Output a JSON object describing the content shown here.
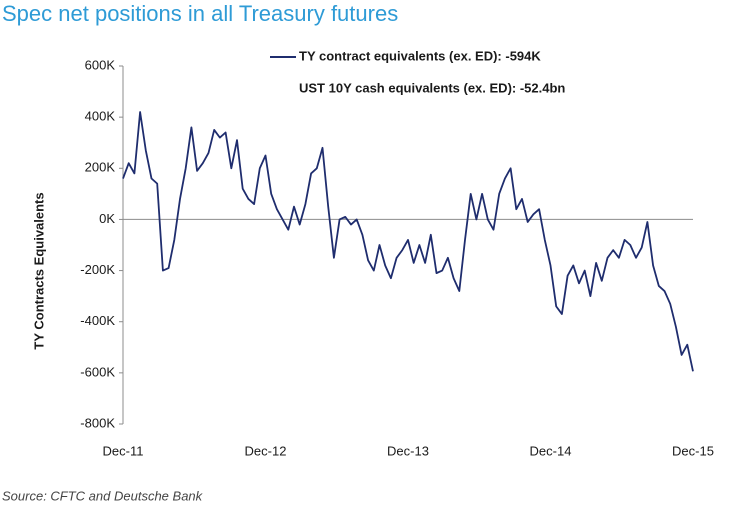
{
  "chart_data": {
    "type": "line",
    "title": "Spec net positions in all Treasury futures",
    "y_label": "TY Contracts Equivalents",
    "annotation": "UST 10Y cash equivalents (ex. ED): -52.4bn",
    "source": "Source: CFTC and Deutsche Bank",
    "categories": [
      "Dec-11",
      null,
      null,
      null,
      null,
      null,
      null,
      null,
      null,
      null,
      null,
      null,
      null,
      null,
      null,
      null,
      null,
      null,
      null,
      null,
      null,
      null,
      null,
      null,
      null,
      "Dec-12",
      null,
      null,
      null,
      null,
      null,
      null,
      null,
      null,
      null,
      null,
      null,
      null,
      null,
      null,
      null,
      null,
      null,
      null,
      null,
      null,
      null,
      null,
      null,
      null,
      "Dec-13",
      null,
      null,
      null,
      null,
      null,
      null,
      null,
      null,
      null,
      null,
      null,
      null,
      null,
      null,
      null,
      null,
      null,
      null,
      null,
      null,
      null,
      null,
      null,
      null,
      "Dec-14",
      null,
      null,
      null,
      null,
      null,
      null,
      null,
      null,
      null,
      null,
      null,
      null,
      null,
      null,
      null,
      null,
      null,
      null,
      null,
      null,
      null,
      null,
      null,
      null,
      "Dec-15"
    ],
    "series": [
      {
        "name": "TY contract equivalents (ex. ED): -594K",
        "color": "#1f2d6e",
        "values": [
          160000,
          220000,
          180000,
          420000,
          270000,
          160000,
          140000,
          -200000,
          -190000,
          -80000,
          80000,
          200000,
          360000,
          190000,
          220000,
          260000,
          350000,
          320000,
          340000,
          200000,
          310000,
          120000,
          80000,
          60000,
          200000,
          250000,
          100000,
          40000,
          0,
          -40000,
          50000,
          -20000,
          60000,
          180000,
          200000,
          280000,
          50000,
          -150000,
          0,
          10000,
          -20000,
          0,
          -60000,
          -160000,
          -200000,
          -100000,
          -180000,
          -230000,
          -150000,
          -120000,
          -80000,
          -170000,
          -100000,
          -170000,
          -60000,
          -210000,
          -200000,
          -150000,
          -230000,
          -280000,
          -80000,
          100000,
          0,
          100000,
          0,
          -40000,
          100000,
          160000,
          200000,
          40000,
          80000,
          -10000,
          20000,
          40000,
          -80000,
          -180000,
          -340000,
          -370000,
          -220000,
          -180000,
          -250000,
          -200000,
          -300000,
          -170000,
          -240000,
          -150000,
          -120000,
          -150000,
          -80000,
          -100000,
          -150000,
          -110000,
          -10000,
          -180000,
          -260000,
          -280000,
          -330000,
          -420000,
          -530000,
          -490000,
          -594000
        ]
      }
    ],
    "ylim": [
      -800000,
      600000
    ],
    "yticks": [
      {
        "value": -800000,
        "label": "-800K"
      },
      {
        "value": -600000,
        "label": "-600K"
      },
      {
        "value": -400000,
        "label": "-400K"
      },
      {
        "value": -200000,
        "label": "-200K"
      },
      {
        "value": 0,
        "label": "0K"
      },
      {
        "value": 200000,
        "label": "200K"
      },
      {
        "value": 400000,
        "label": "400K"
      },
      {
        "value": 600000,
        "label": "600K"
      }
    ],
    "zero_line_color": "#8c8c8c",
    "legend": "top"
  }
}
